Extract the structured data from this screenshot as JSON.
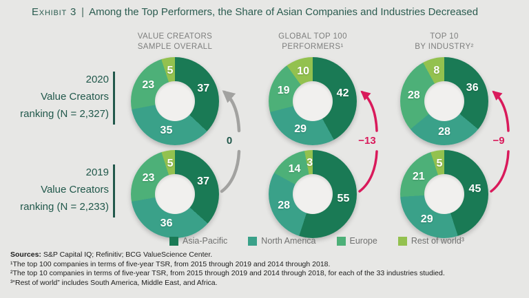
{
  "title": {
    "prefix": "Exhibit 3",
    "separator": "|",
    "text": "Among the Top Performers, the Share of Asian Companies and Industries Decreased"
  },
  "columns": [
    {
      "header_line1": "VALUE CREATORS",
      "header_line2": "SAMPLE OVERALL"
    },
    {
      "header_line1": "GLOBAL TOP 100",
      "header_line2": "PERFORMERS¹"
    },
    {
      "header_line1": "TOP 10",
      "header_line2": "BY INDUSTRY²"
    }
  ],
  "rows": [
    {
      "year": "2020",
      "label_line2": "Value Creators",
      "label_line3": "ranking (N = 2,327)"
    },
    {
      "year": "2019",
      "label_line2": "Value Creators",
      "label_line3": "ranking (N = 2,233)"
    }
  ],
  "legend": [
    {
      "label": "Asia-Pacific",
      "color": "#1A7A55"
    },
    {
      "label": "North America",
      "color": "#3AA189"
    },
    {
      "label": "Europe",
      "color": "#4DB078"
    },
    {
      "label": "Rest of world³",
      "color": "#93C14F"
    }
  ],
  "chart_data": {
    "type": "pie",
    "variant": "donut",
    "legend_position": "bottom",
    "categories": [
      "Asia-Pacific",
      "North America",
      "Europe",
      "Rest of world"
    ],
    "donuts": [
      {
        "row": "2020",
        "column": "Value Creators sample overall",
        "values": [
          37,
          35,
          23,
          5
        ]
      },
      {
        "row": "2020",
        "column": "Global top 100 performers",
        "values": [
          42,
          29,
          19,
          10
        ]
      },
      {
        "row": "2020",
        "column": "Top 10 by industry",
        "values": [
          36,
          28,
          28,
          8
        ]
      },
      {
        "row": "2019",
        "column": "Value Creators sample overall",
        "values": [
          37,
          36,
          23,
          5
        ]
      },
      {
        "row": "2019",
        "column": "Global top 100 performers",
        "values": [
          55,
          28,
          14,
          3
        ]
      },
      {
        "row": "2019",
        "column": "Top 10 by industry",
        "values": [
          45,
          29,
          21,
          5
        ]
      }
    ],
    "changes": [
      {
        "column": "Value Creators sample overall",
        "value": 0,
        "label": "0",
        "arrow_color": "#A2A2A0",
        "label_color": "#21584B"
      },
      {
        "column": "Global top 100 performers",
        "value": -13,
        "label": "−13",
        "arrow_color": "#D91A5B",
        "label_color": "#D91A5B"
      },
      {
        "column": "Top 10 by industry",
        "value": -9,
        "label": "−9",
        "arrow_color": "#D91A5B",
        "label_color": "#D91A5B"
      }
    ]
  },
  "footer": {
    "sources_label": "Sources:",
    "sources_text": " S&P Capital IQ; Refinitiv; BCG ValueScience Center.",
    "notes": [
      "¹The top 100 companies in terms of five-year TSR, from 2015 through 2019 and 2014 through 2018.",
      "²The top 10 companies in terms of five-year TSR, from 2015 through 2019 and 2014 through 2018, for each of the 33 industries studied.",
      "³“Rest of world” includes South America, Middle East, and Africa."
    ]
  },
  "colors": {
    "background": "#E7E7E5",
    "title_green": "#2B5C50",
    "row_label_green": "#21584B",
    "header_gray": "#7D7E7D",
    "legend_gray": "#6F706F",
    "negative_pink": "#D91A5B",
    "neutral_gray_arrow": "#A2A2A0",
    "donut_hole": "#F1F0EE"
  }
}
